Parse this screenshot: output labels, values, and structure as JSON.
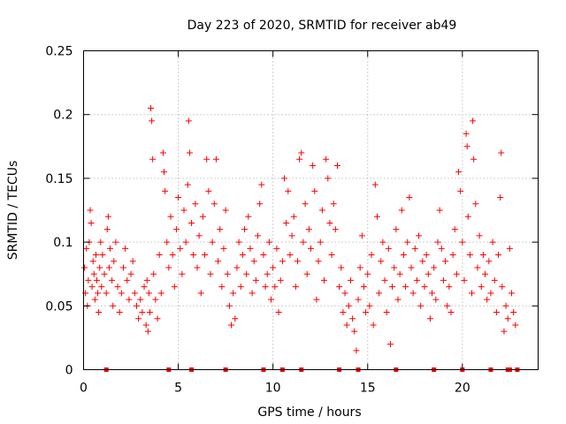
{
  "colors": {
    "series": "#ff0000",
    "grid": "#a0a0a0",
    "axis": "#000000"
  },
  "chart_data": {
    "type": "scatter",
    "title": "Day 223 of 2020, SRMTID for receiver ab49",
    "xlabel": "GPS time / hours",
    "ylabel": "SRMTID / TECUs",
    "xlim": [
      0,
      24
    ],
    "ylim": [
      0,
      0.25
    ],
    "grid": true,
    "xticks": [
      0,
      5,
      10,
      15,
      20
    ],
    "xtick_labels": [
      "0",
      "5",
      "10",
      "15",
      "20"
    ],
    "yticks": [
      0,
      0.05,
      0.1,
      0.15,
      0.2,
      0.25
    ],
    "ytick_labels": [
      "0",
      "0.05",
      "0.1",
      "0.15",
      "0.2",
      "0.25"
    ],
    "marker": "plus",
    "series": [
      {
        "name": "SRMTID",
        "marker": "plus",
        "points": [
          [
            0.05,
            0.08
          ],
          [
            0.1,
            0.06
          ],
          [
            0.15,
            0.095
          ],
          [
            0.2,
            0.05
          ],
          [
            0.25,
            0.07
          ],
          [
            0.3,
            0.1
          ],
          [
            0.35,
            0.125
          ],
          [
            0.4,
            0.115
          ],
          [
            0.45,
            0.065
          ],
          [
            0.5,
            0.085
          ],
          [
            0.55,
            0.075
          ],
          [
            0.6,
            0.055
          ],
          [
            0.65,
            0.09
          ],
          [
            0.7,
            0.07
          ],
          [
            0.75,
            0.06
          ],
          [
            0.8,
            0.045
          ],
          [
            0.85,
            0.08
          ],
          [
            0.9,
            0.1
          ],
          [
            0.95,
            0.065
          ],
          [
            1.0,
            0.09
          ],
          [
            1.1,
            0.075
          ],
          [
            1.2,
            0.06
          ],
          [
            1.25,
            0.11
          ],
          [
            1.3,
            0.12
          ],
          [
            1.35,
            0.08
          ],
          [
            1.4,
            0.095
          ],
          [
            1.5,
            0.07
          ],
          [
            1.55,
            0.05
          ],
          [
            1.6,
            0.085
          ],
          [
            1.7,
            0.1
          ],
          [
            1.8,
            0.065
          ],
          [
            1.9,
            0.045
          ],
          [
            2.0,
            0.06
          ],
          [
            2.1,
            0.08
          ],
          [
            2.2,
            0.095
          ],
          [
            2.3,
            0.07
          ],
          [
            2.4,
            0.055
          ],
          [
            2.5,
            0.075
          ],
          [
            2.6,
            0.085
          ],
          [
            2.7,
            0.06
          ],
          [
            2.8,
            0.05
          ],
          [
            2.9,
            0.04
          ],
          [
            3.0,
            0.055
          ],
          [
            3.1,
            0.045
          ],
          [
            3.2,
            0.065
          ],
          [
            3.3,
            0.035
          ],
          [
            3.35,
            0.07
          ],
          [
            3.4,
            0.03
          ],
          [
            3.45,
            0.06
          ],
          [
            3.5,
            0.045
          ],
          [
            3.55,
            0.205
          ],
          [
            3.6,
            0.195
          ],
          [
            3.65,
            0.165
          ],
          [
            3.7,
            0.075
          ],
          [
            3.8,
            0.055
          ],
          [
            3.9,
            0.04
          ],
          [
            4.0,
            0.09
          ],
          [
            4.1,
            0.06
          ],
          [
            4.2,
            0.17
          ],
          [
            4.25,
            0.155
          ],
          [
            4.3,
            0.14
          ],
          [
            4.4,
            0.1
          ],
          [
            4.5,
            0.08
          ],
          [
            4.6,
            0.12
          ],
          [
            4.7,
            0.09
          ],
          [
            4.8,
            0.065
          ],
          [
            4.9,
            0.11
          ],
          [
            5.0,
            0.135
          ],
          [
            5.1,
            0.095
          ],
          [
            5.2,
            0.075
          ],
          [
            5.3,
            0.125
          ],
          [
            5.4,
            0.1
          ],
          [
            5.5,
            0.145
          ],
          [
            5.55,
            0.195
          ],
          [
            5.6,
            0.17
          ],
          [
            5.7,
            0.115
          ],
          [
            5.8,
            0.09
          ],
          [
            5.9,
            0.13
          ],
          [
            6.0,
            0.08
          ],
          [
            6.1,
            0.105
          ],
          [
            6.2,
            0.06
          ],
          [
            6.3,
            0.12
          ],
          [
            6.4,
            0.09
          ],
          [
            6.5,
            0.165
          ],
          [
            6.6,
            0.14
          ],
          [
            6.7,
            0.075
          ],
          [
            6.8,
            0.1
          ],
          [
            6.9,
            0.13
          ],
          [
            7.0,
            0.165
          ],
          [
            7.1,
            0.085
          ],
          [
            7.2,
            0.11
          ],
          [
            7.3,
            0.065
          ],
          [
            7.4,
            0.095
          ],
          [
            7.5,
            0.125
          ],
          [
            7.6,
            0.075
          ],
          [
            7.7,
            0.05
          ],
          [
            7.8,
            0.035
          ],
          [
            7.9,
            0.06
          ],
          [
            8.0,
            0.04
          ],
          [
            8.1,
            0.08
          ],
          [
            8.2,
            0.1
          ],
          [
            8.3,
            0.065
          ],
          [
            8.4,
            0.09
          ],
          [
            8.5,
            0.11
          ],
          [
            8.6,
            0.075
          ],
          [
            8.7,
            0.12
          ],
          [
            8.8,
            0.095
          ],
          [
            8.9,
            0.06
          ],
          [
            9.0,
            0.085
          ],
          [
            9.1,
            0.07
          ],
          [
            9.2,
            0.105
          ],
          [
            9.3,
            0.13
          ],
          [
            9.4,
            0.145
          ],
          [
            9.5,
            0.09
          ],
          [
            9.6,
            0.065
          ],
          [
            9.7,
            0.075
          ],
          [
            9.8,
            0.1
          ],
          [
            9.9,
            0.055
          ],
          [
            10.0,
            0.08
          ],
          [
            10.1,
            0.065
          ],
          [
            10.2,
            0.095
          ],
          [
            10.3,
            0.045
          ],
          [
            10.4,
            0.07
          ],
          [
            10.5,
            0.085
          ],
          [
            10.6,
            0.15
          ],
          [
            10.7,
            0.115
          ],
          [
            10.8,
            0.14
          ],
          [
            10.9,
            0.09
          ],
          [
            11.0,
            0.105
          ],
          [
            11.1,
            0.12
          ],
          [
            11.2,
            0.065
          ],
          [
            11.3,
            0.085
          ],
          [
            11.4,
            0.165
          ],
          [
            11.5,
            0.17
          ],
          [
            11.6,
            0.1
          ],
          [
            11.7,
            0.13
          ],
          [
            11.8,
            0.075
          ],
          [
            11.9,
            0.11
          ],
          [
            12.0,
            0.095
          ],
          [
            12.1,
            0.16
          ],
          [
            12.2,
            0.14
          ],
          [
            12.3,
            0.055
          ],
          [
            12.4,
            0.085
          ],
          [
            12.5,
            0.1
          ],
          [
            12.6,
            0.125
          ],
          [
            12.7,
            0.07
          ],
          [
            12.8,
            0.165
          ],
          [
            12.9,
            0.15
          ],
          [
            13.0,
            0.115
          ],
          [
            13.1,
            0.09
          ],
          [
            13.2,
            0.13
          ],
          [
            13.3,
            0.11
          ],
          [
            13.4,
            0.16
          ],
          [
            13.5,
            0.065
          ],
          [
            13.6,
            0.08
          ],
          [
            13.7,
            0.045
          ],
          [
            13.8,
            0.06
          ],
          [
            13.9,
            0.035
          ],
          [
            14.0,
            0.05
          ],
          [
            14.1,
            0.07
          ],
          [
            14.2,
            0.04
          ],
          [
            14.3,
            0.03
          ],
          [
            14.4,
            0.015
          ],
          [
            14.5,
            0.055
          ],
          [
            14.6,
            0.08
          ],
          [
            14.7,
            0.105
          ],
          [
            14.8,
            0.065
          ],
          [
            14.9,
            0.045
          ],
          [
            15.0,
            0.075
          ],
          [
            15.1,
            0.05
          ],
          [
            15.2,
            0.09
          ],
          [
            15.3,
            0.035
          ],
          [
            15.4,
            0.145
          ],
          [
            15.5,
            0.12
          ],
          [
            15.6,
            0.06
          ],
          [
            15.7,
            0.085
          ],
          [
            15.8,
            0.1
          ],
          [
            15.9,
            0.07
          ],
          [
            16.0,
            0.045
          ],
          [
            16.1,
            0.095
          ],
          [
            16.2,
            0.02
          ],
          [
            16.3,
            0.065
          ],
          [
            16.4,
            0.08
          ],
          [
            16.5,
            0.11
          ],
          [
            16.6,
            0.055
          ],
          [
            16.7,
            0.075
          ],
          [
            16.8,
            0.125
          ],
          [
            16.9,
            0.09
          ],
          [
            17.0,
            0.065
          ],
          [
            17.1,
            0.1
          ],
          [
            17.2,
            0.135
          ],
          [
            17.3,
            0.08
          ],
          [
            17.4,
            0.06
          ],
          [
            17.5,
            0.095
          ],
          [
            17.6,
            0.07
          ],
          [
            17.7,
            0.105
          ],
          [
            17.8,
            0.05
          ],
          [
            17.9,
            0.085
          ],
          [
            18.0,
            0.065
          ],
          [
            18.1,
            0.09
          ],
          [
            18.2,
            0.075
          ],
          [
            18.3,
            0.04
          ],
          [
            18.4,
            0.06
          ],
          [
            18.5,
            0.08
          ],
          [
            18.6,
            0.055
          ],
          [
            18.7,
            0.1
          ],
          [
            18.8,
            0.125
          ],
          [
            18.9,
            0.095
          ],
          [
            19.0,
            0.07
          ],
          [
            19.1,
            0.085
          ],
          [
            19.2,
            0.05
          ],
          [
            19.3,
            0.065
          ],
          [
            19.4,
            0.045
          ],
          [
            19.5,
            0.09
          ],
          [
            19.6,
            0.11
          ],
          [
            19.7,
            0.075
          ],
          [
            19.8,
            0.155
          ],
          [
            19.9,
            0.14
          ],
          [
            20.0,
            0.1
          ],
          [
            20.1,
            0.07
          ],
          [
            20.2,
            0.185
          ],
          [
            20.25,
            0.175
          ],
          [
            20.3,
            0.12
          ],
          [
            20.4,
            0.09
          ],
          [
            20.5,
            0.06
          ],
          [
            20.55,
            0.195
          ],
          [
            20.6,
            0.165
          ],
          [
            20.7,
            0.13
          ],
          [
            20.8,
            0.08
          ],
          [
            20.9,
            0.105
          ],
          [
            21.0,
            0.065
          ],
          [
            21.1,
            0.09
          ],
          [
            21.2,
            0.075
          ],
          [
            21.3,
            0.055
          ],
          [
            21.4,
            0.085
          ],
          [
            21.5,
            0.06
          ],
          [
            21.6,
            0.1
          ],
          [
            21.7,
            0.07
          ],
          [
            21.8,
            0.045
          ],
          [
            21.9,
            0.09
          ],
          [
            22.0,
            0.135
          ],
          [
            22.05,
            0.17
          ],
          [
            22.1,
            0.065
          ],
          [
            22.2,
            0.03
          ],
          [
            22.3,
            0.05
          ],
          [
            22.4,
            0.04
          ],
          [
            22.5,
            0.095
          ],
          [
            22.6,
            0.06
          ],
          [
            22.7,
            0.045
          ],
          [
            22.8,
            0.035
          ]
        ]
      }
    ],
    "zero_points_x": [
      1.2,
      4.5,
      5.7,
      7.5,
      9.5,
      10.5,
      11.5,
      13.5,
      14.5,
      16.5,
      18.5,
      20.0,
      21.5,
      22.4,
      22.5,
      22.9
    ]
  }
}
